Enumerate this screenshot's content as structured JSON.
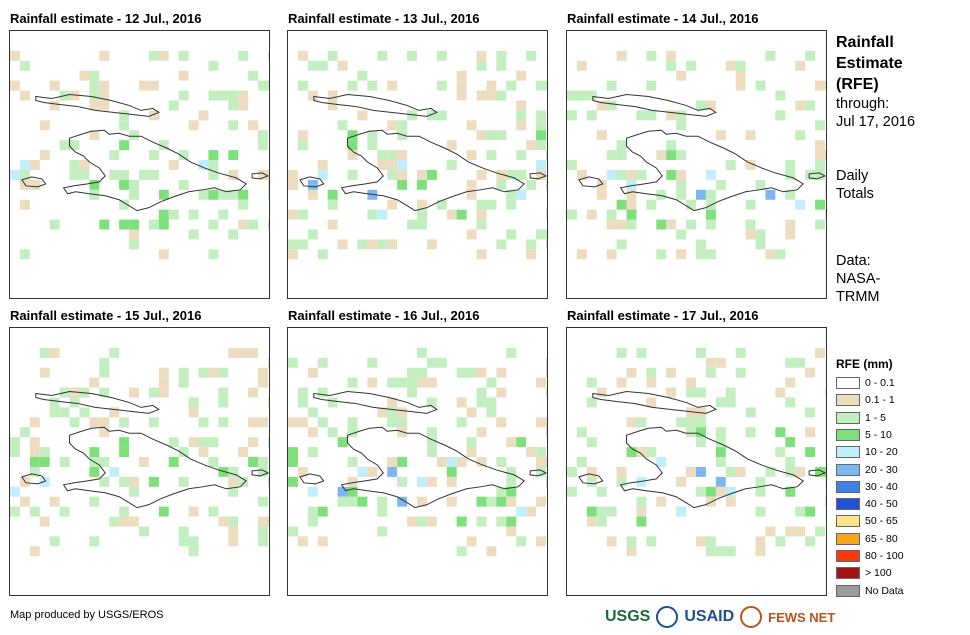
{
  "panels": [
    {
      "title": "Rainfall estimate - 12 Jul., 2016"
    },
    {
      "title": "Rainfall estimate - 13 Jul., 2016"
    },
    {
      "title": "Rainfall estimate - 14 Jul., 2016"
    },
    {
      "title": "Rainfall estimate - 15 Jul., 2016"
    },
    {
      "title": "Rainfall estimate - 16 Jul., 2016"
    },
    {
      "title": "Rainfall estimate - 17 Jul., 2016"
    }
  ],
  "side": {
    "title_line1": "Rainfall",
    "title_line2": "Estimate",
    "title_line3": "(RFE)",
    "through": "through:",
    "date": "Jul 17, 2016",
    "daily1": "Daily",
    "daily2": "Totals",
    "data1": "Data:",
    "data2": "NASA-",
    "data3": "TRMM"
  },
  "legend": {
    "title": "RFE (mm)",
    "items": [
      {
        "label": "0 - 0.1",
        "color": "#ffffff"
      },
      {
        "label": "0.1 - 1",
        "color": "#ecdcc0"
      },
      {
        "label": "1 - 5",
        "color": "#c2eec0"
      },
      {
        "label": "5 - 10",
        "color": "#7ee07a"
      },
      {
        "label": "10 - 20",
        "color": "#bfeefc"
      },
      {
        "label": "20 - 30",
        "color": "#7db7ef"
      },
      {
        "label": "30 - 40",
        "color": "#3f82e3"
      },
      {
        "label": "40 - 50",
        "color": "#1f53d6"
      },
      {
        "label": "50 - 65",
        "color": "#fce38a"
      },
      {
        "label": "65 - 80",
        "color": "#f9a51a"
      },
      {
        "label": "80 - 100",
        "color": "#fa3a0e"
      },
      {
        "label": "> 100",
        "color": "#a11414"
      },
      {
        "label": "No Data",
        "color": "#9b9b9b"
      }
    ]
  },
  "credit": "Map produced by USGS/EROS",
  "logos": {
    "usgs": "USGS",
    "usaid": "USAID",
    "fews": "FEWS NET"
  }
}
